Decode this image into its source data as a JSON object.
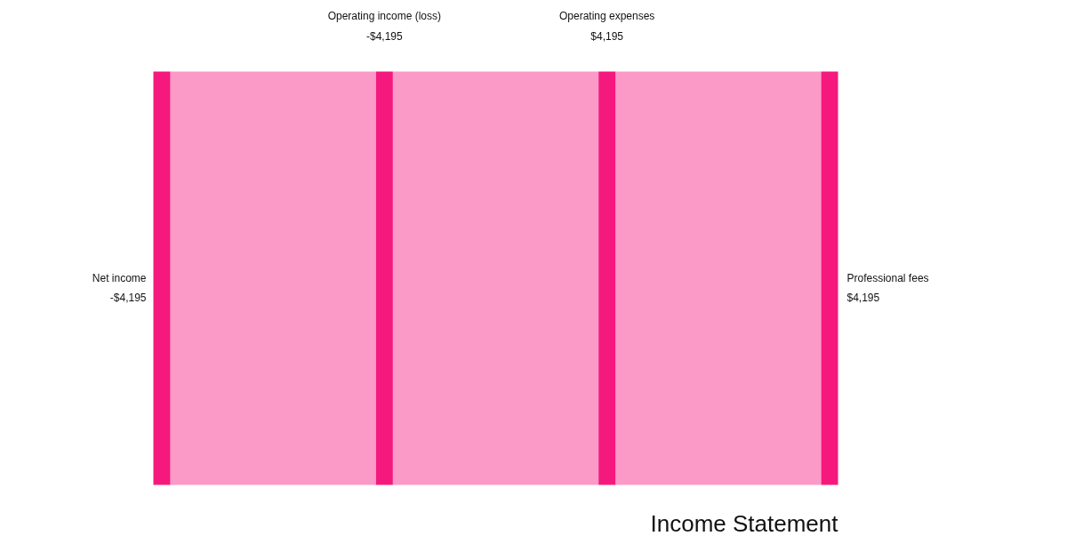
{
  "chart_data": {
    "type": "other",
    "title": "Income Statement",
    "categories": [
      "Net income",
      "Operating income (loss)",
      "Operating expenses",
      "Professional fees"
    ],
    "values": [
      -4195,
      -4195,
      4195,
      4195
    ],
    "value_labels": [
      "-$4,195",
      "-$4,195",
      "$4,195",
      "$4,195"
    ],
    "colors": [
      "#f5197d",
      "#f5197d",
      "#f5197d",
      "#f5197d"
    ]
  }
}
